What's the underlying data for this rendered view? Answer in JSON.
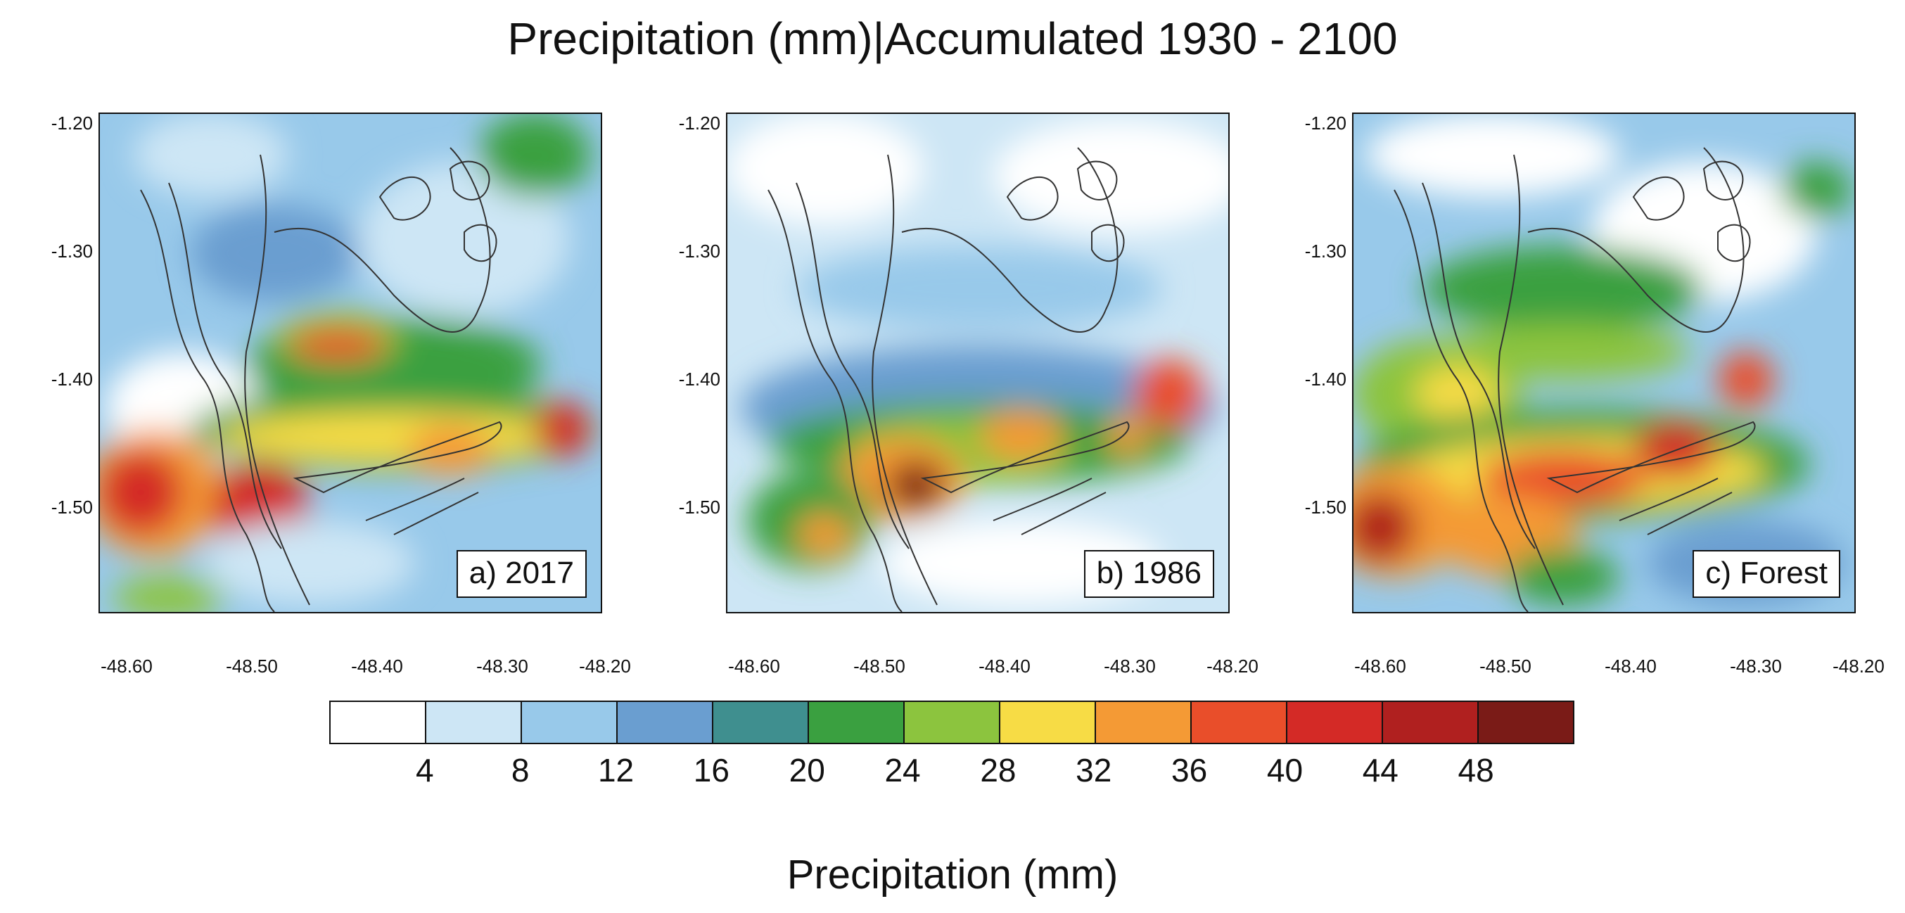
{
  "title": "Precipitation (mm)|Accumulated 1930 - 2100",
  "panels": [
    {
      "label": "a) 2017"
    },
    {
      "label": "b) 1986"
    },
    {
      "label": "c) Forest"
    }
  ],
  "y_ticks": [
    "-1.20",
    "-1.30",
    "-1.40",
    "-1.50"
  ],
  "x_ticks": [
    "-48.60",
    "-48.50",
    "-48.40",
    "-48.30",
    "-48.20"
  ],
  "colorbar": {
    "title": "Precipitation (mm)",
    "labels": [
      "4",
      "8",
      "12",
      "16",
      "20",
      "24",
      "28",
      "32",
      "36",
      "40",
      "44",
      "48"
    ],
    "colors": [
      "#ffffff",
      "#cde6f5",
      "#98c9ea",
      "#6a9ed0",
      "#3f8f8f",
      "#3aa040",
      "#8cc43e",
      "#f7dc45",
      "#f49a35",
      "#e94e2a",
      "#d42a26",
      "#b0201f",
      "#7a1b17"
    ]
  }
}
